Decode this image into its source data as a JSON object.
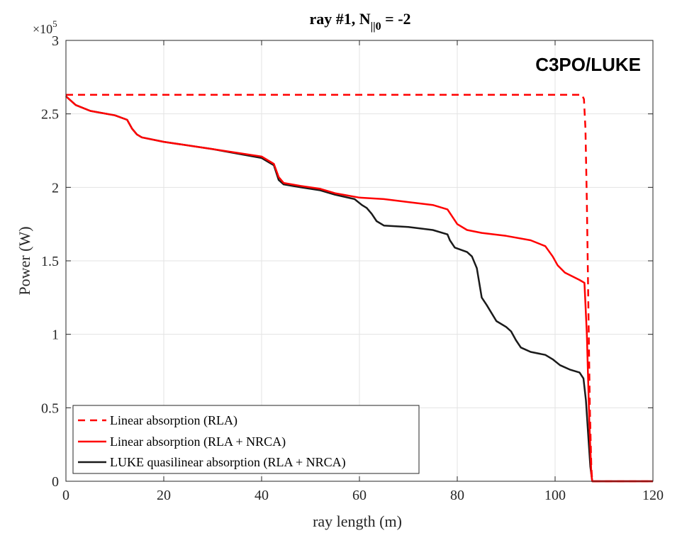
{
  "chart_data": {
    "type": "line",
    "title_main": "ray #1, N",
    "title_sub": "||0",
    "title_rest": " = -2",
    "watermark": "C3PO/LUKE",
    "exponent_base": "×10",
    "exponent_power": "5",
    "xlabel": "ray length (m)",
    "ylabel": "Power (W)",
    "xlim": [
      0,
      120
    ],
    "ylim": [
      0,
      3
    ],
    "y_scale_factor": 100000,
    "xticks": [
      0,
      20,
      40,
      60,
      80,
      100,
      120
    ],
    "xtick_labels": [
      "0",
      "20",
      "40",
      "60",
      "80",
      "100",
      "120"
    ],
    "yticks": [
      0,
      0.5,
      1,
      1.5,
      2,
      2.5,
      3
    ],
    "ytick_labels": [
      "0",
      "0.5",
      "1",
      "1.5",
      "2",
      "2.5",
      "3"
    ],
    "grid": true,
    "legend_position": "bottom-left",
    "series": [
      {
        "name": "Linear absorption (RLA)",
        "color": "#ff0000",
        "style": "dashed",
        "x": [
          0,
          105.5,
          105.9,
          106.2,
          106.5,
          106.8,
          107.1,
          107.4,
          107.6,
          108,
          120
        ],
        "y": [
          2.63,
          2.63,
          2.6,
          2.4,
          1.9,
          1.2,
          0.5,
          0.1,
          0,
          0,
          0
        ]
      },
      {
        "name": "Linear absorption (RLA + NRCA)",
        "color": "#ff0000",
        "style": "solid",
        "x": [
          0,
          2,
          5,
          10,
          12.5,
          13.5,
          14.5,
          15.5,
          20,
          30,
          40,
          42.5,
          43.5,
          44.5,
          48,
          52,
          55,
          60,
          65,
          70,
          75,
          78,
          79,
          80,
          82,
          85,
          90,
          95,
          98,
          99.5,
          100.5,
          102,
          105,
          106,
          106.5,
          107,
          107.4,
          107.6,
          120
        ],
        "y": [
          2.62,
          2.56,
          2.52,
          2.49,
          2.46,
          2.4,
          2.36,
          2.34,
          2.31,
          2.26,
          2.21,
          2.16,
          2.07,
          2.03,
          2.01,
          1.99,
          1.96,
          1.93,
          1.92,
          1.9,
          1.88,
          1.85,
          1.8,
          1.75,
          1.71,
          1.69,
          1.67,
          1.64,
          1.6,
          1.53,
          1.47,
          1.42,
          1.37,
          1.35,
          1.0,
          0.4,
          0.05,
          0,
          0
        ]
      },
      {
        "name": "LUKE quasilinear absorption (RLA + NRCA)",
        "color": "#1a1a1a",
        "style": "solid",
        "x": [
          0,
          2,
          5,
          10,
          12.5,
          13.5,
          14.5,
          15.5,
          20,
          30,
          40,
          42.5,
          43.5,
          44.5,
          48,
          52,
          55,
          59,
          60.5,
          61.5,
          62.5,
          63.5,
          65,
          70,
          75,
          78,
          78.5,
          79.5,
          82,
          83,
          84,
          85,
          86,
          88,
          90,
          91,
          92,
          93,
          95,
          98,
          99.5,
          101,
          103,
          105,
          105.8,
          106.3,
          106.8,
          107.2,
          107.6,
          120
        ],
        "y": [
          2.62,
          2.56,
          2.52,
          2.49,
          2.46,
          2.4,
          2.36,
          2.34,
          2.31,
          2.26,
          2.2,
          2.15,
          2.05,
          2.02,
          2.0,
          1.98,
          1.95,
          1.92,
          1.88,
          1.86,
          1.82,
          1.77,
          1.74,
          1.73,
          1.71,
          1.68,
          1.64,
          1.59,
          1.56,
          1.53,
          1.45,
          1.25,
          1.2,
          1.09,
          1.05,
          1.02,
          0.96,
          0.91,
          0.88,
          0.86,
          0.83,
          0.79,
          0.76,
          0.74,
          0.7,
          0.55,
          0.3,
          0.1,
          0,
          0
        ]
      }
    ]
  }
}
